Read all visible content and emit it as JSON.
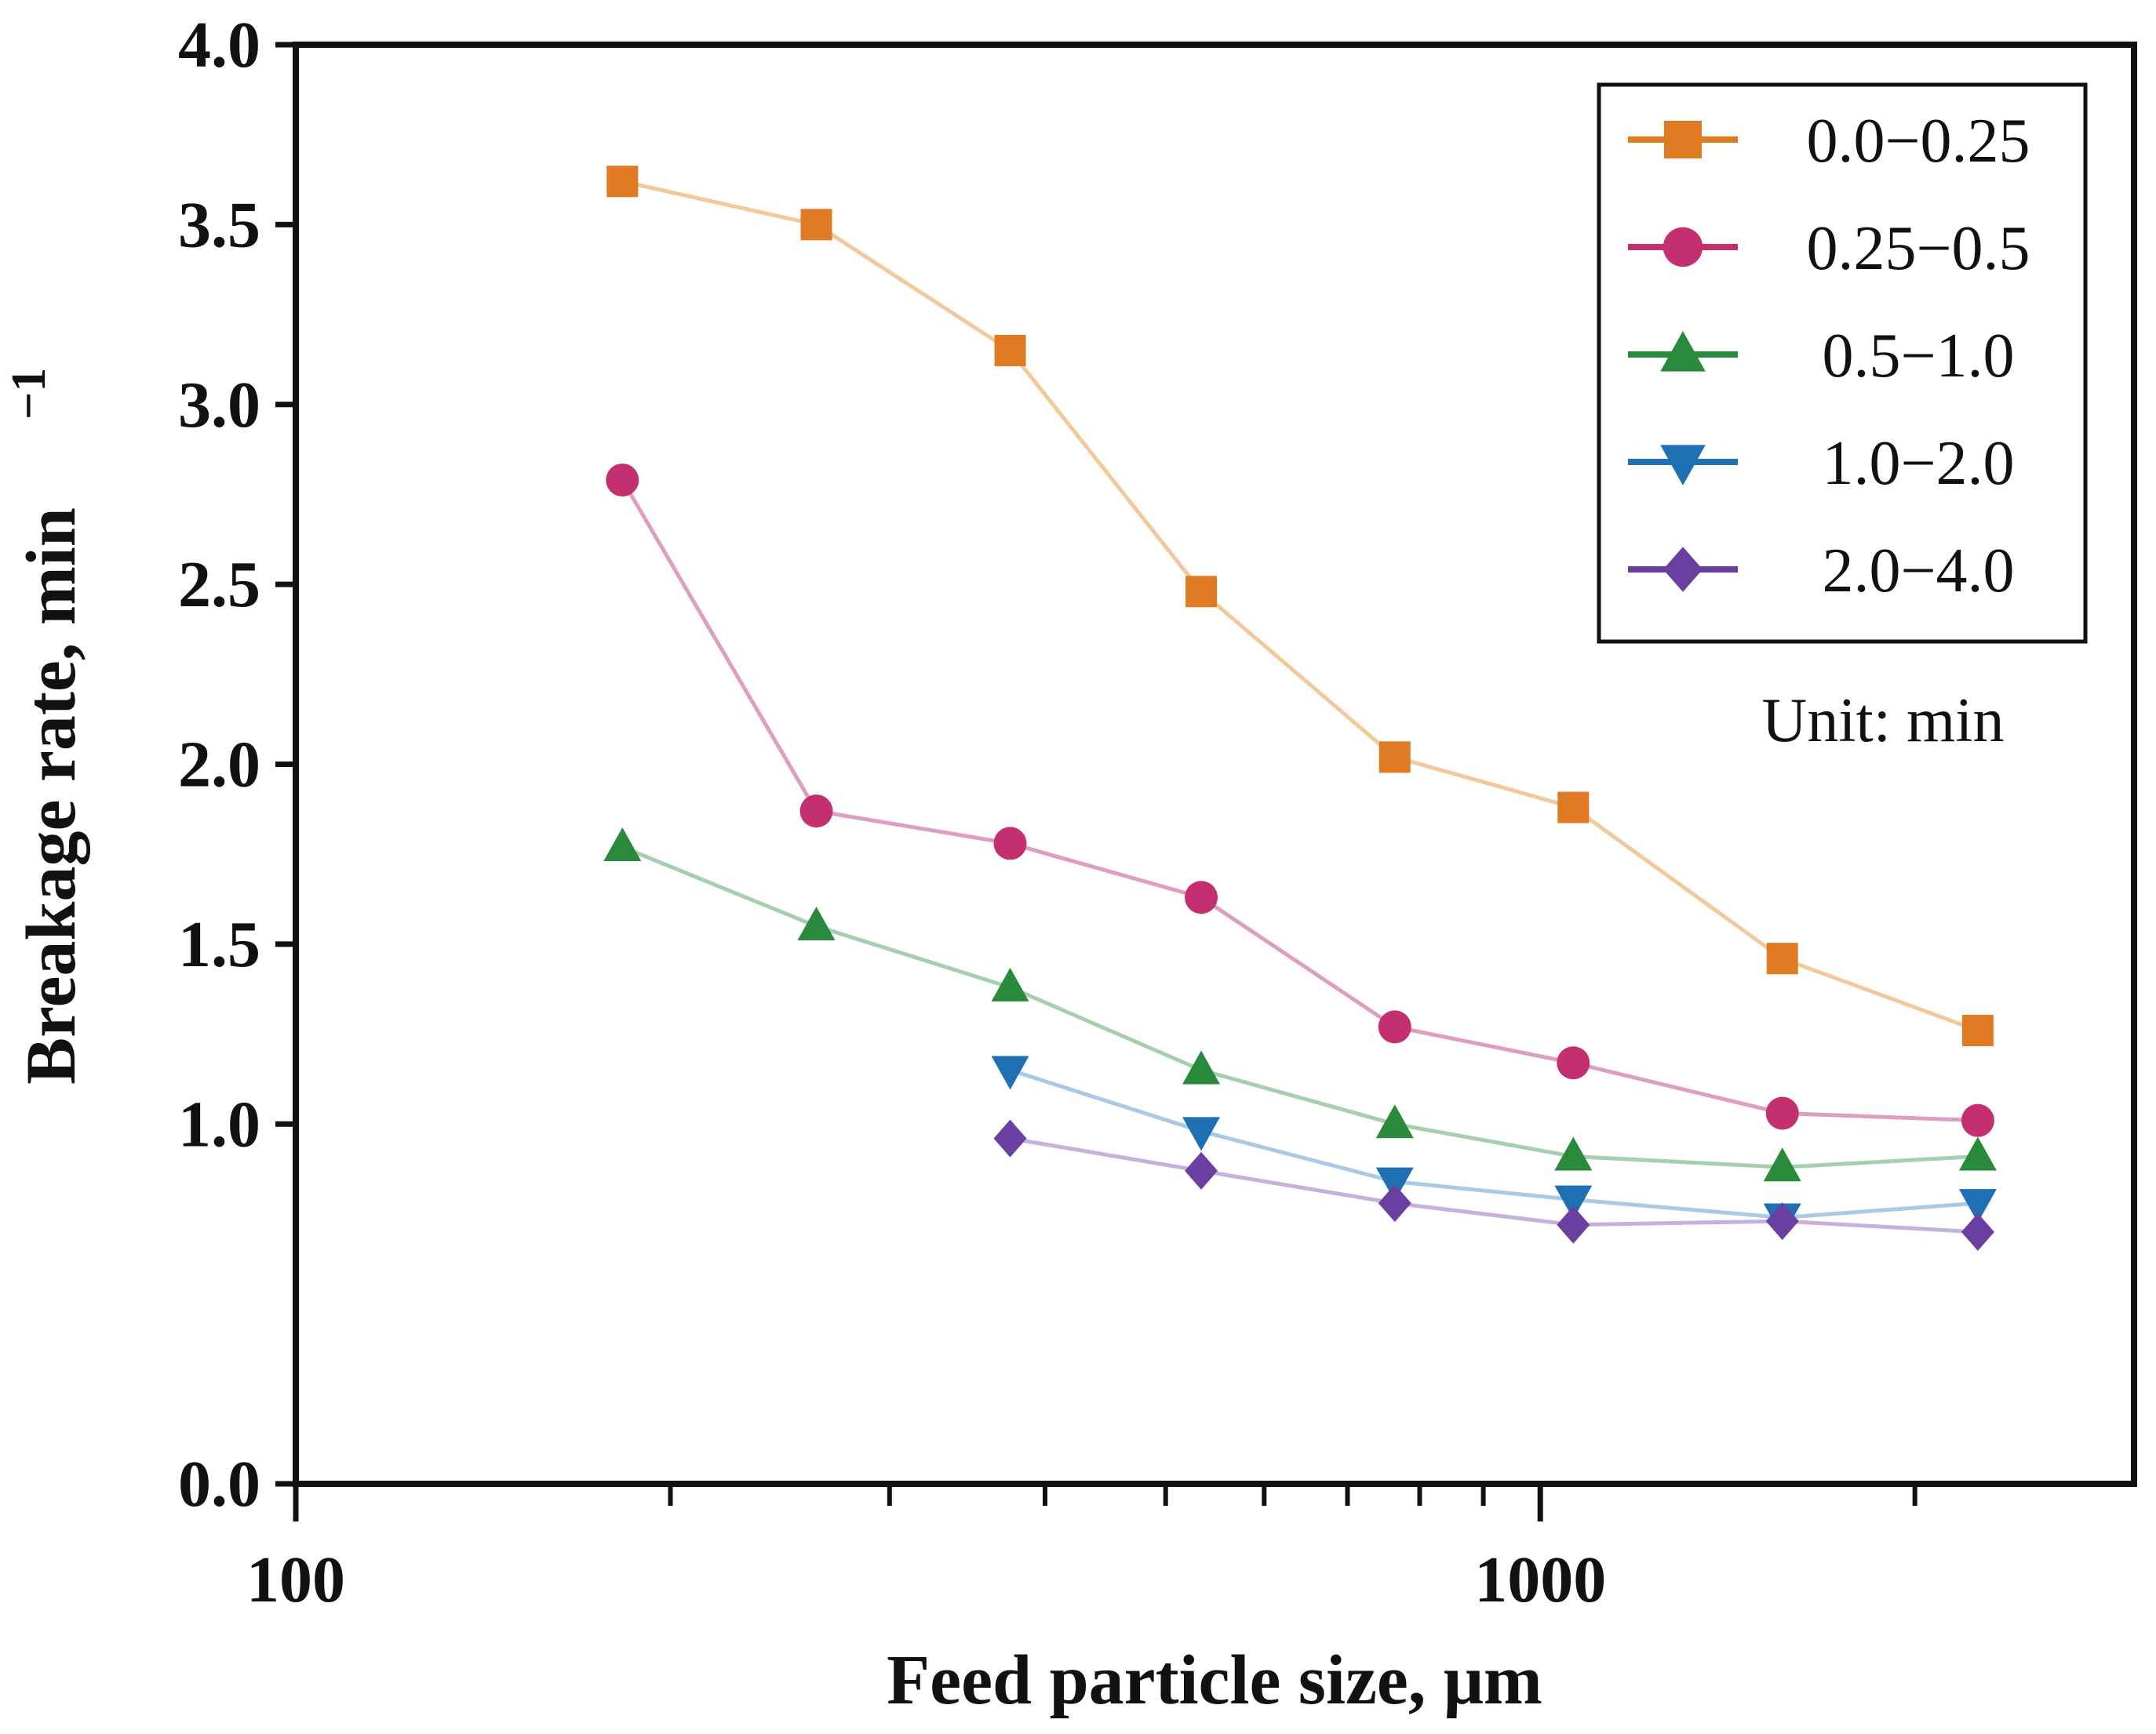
{
  "chart_data": {
    "type": "line",
    "title": "",
    "xlabel": "Feed particle size, μm",
    "ylabel": "Breakage rate, min",
    "ylabel_superscript": "−1",
    "x_scale": "log",
    "xlim": [
      100,
      3000
    ],
    "ylim": [
      0.0,
      4.0
    ],
    "x_ticks": [
      {
        "value": 100,
        "label": "100"
      },
      {
        "value": 1000,
        "label": "1000"
      }
    ],
    "x_minor_ticks": [
      200,
      300,
      400,
      500,
      600,
      700,
      800,
      900,
      2000
    ],
    "y_ticks": [
      {
        "value": 0.0,
        "label": "0.0"
      },
      {
        "value": 1.0,
        "label": "1.0"
      },
      {
        "value": 1.5,
        "label": "1.5"
      },
      {
        "value": 2.0,
        "label": "2.0"
      },
      {
        "value": 2.5,
        "label": "2.5"
      },
      {
        "value": 3.0,
        "label": "3.0"
      },
      {
        "value": 3.5,
        "label": "3.5"
      },
      {
        "value": 4.0,
        "label": "4.0"
      }
    ],
    "grid": false,
    "legend_position": "top-right",
    "annotation": "Unit: min",
    "series": [
      {
        "name": "0.0−0.25",
        "color": "#e07b24",
        "line_color": "#f3c89a",
        "marker": "square",
        "x": [
          183,
          262,
          375,
          534,
          764,
          1063,
          1565,
          2247
        ],
        "y": [
          3.62,
          3.5,
          3.15,
          2.48,
          2.02,
          1.88,
          1.46,
          1.26
        ]
      },
      {
        "name": "0.25−0.5",
        "color": "#c4306f",
        "line_color": "#dd9ec0",
        "marker": "circle",
        "x": [
          183,
          262,
          375,
          534,
          764,
          1063,
          1565,
          2247
        ],
        "y": [
          2.79,
          1.87,
          1.78,
          1.63,
          1.27,
          1.17,
          1.03,
          1.01
        ]
      },
      {
        "name": "0.5−1.0",
        "color": "#2a8a3c",
        "line_color": "#a6cfae",
        "marker": "triangle-up",
        "x": [
          183,
          262,
          375,
          534,
          764,
          1063,
          1565,
          2247
        ],
        "y": [
          1.77,
          1.55,
          1.38,
          1.15,
          1.0,
          0.91,
          0.88,
          0.91
        ]
      },
      {
        "name": "1.0−2.0",
        "color": "#1f6fb5",
        "line_color": "#a9c9e6",
        "marker": "triangle-down",
        "x": [
          375,
          534,
          764,
          1063,
          1565,
          2247
        ],
        "y": [
          1.15,
          0.98,
          0.84,
          0.79,
          0.74,
          0.78
        ]
      },
      {
        "name": "2.0−4.0",
        "color": "#6a3fa0",
        "line_color": "#c4b2dc",
        "marker": "diamond",
        "x": [
          375,
          534,
          764,
          1063,
          1565,
          2247
        ],
        "y": [
          0.96,
          0.87,
          0.78,
          0.72,
          0.73,
          0.7
        ]
      }
    ]
  }
}
